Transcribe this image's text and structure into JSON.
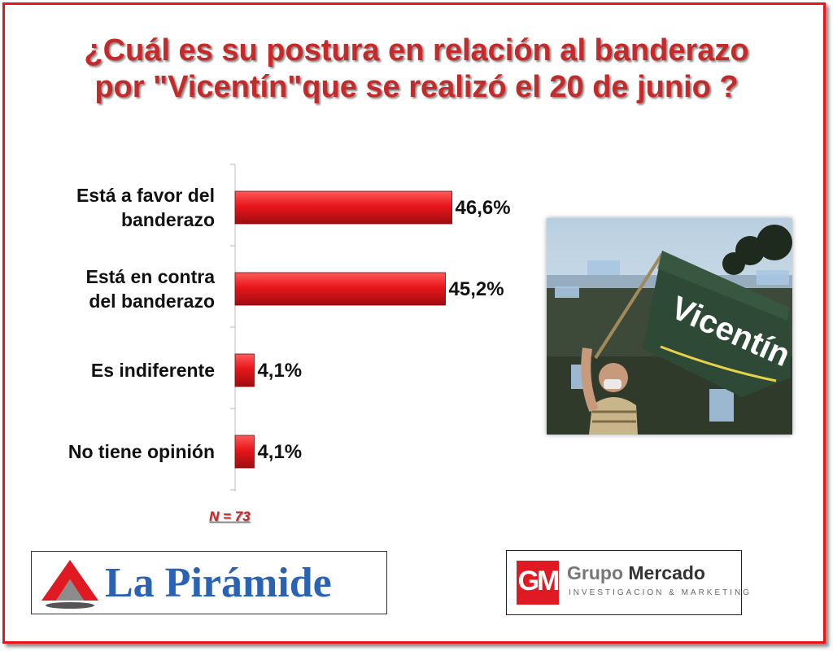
{
  "title": {
    "line1": "¿Cuál es su postura en relación al banderazo",
    "line2": "por \"Vicentín\"que se realizó el 20 de junio ?"
  },
  "chart_data": {
    "type": "bar",
    "orientation": "horizontal",
    "categories": [
      [
        "Está a favor del",
        "banderazo"
      ],
      [
        "Está en contra",
        "del banderazo"
      ],
      [
        "Es indiferente"
      ],
      [
        "No tiene opinión"
      ]
    ],
    "values": [
      46.6,
      45.2,
      4.1,
      4.1
    ],
    "value_labels": [
      "46,6%",
      "45,2%",
      "4,1%",
      "4,1%"
    ],
    "xlim": [
      0,
      50
    ],
    "grid": false,
    "bar_color": "#e8161b"
  },
  "note": "N = 73",
  "photo": {
    "flag_text": "Vicentín"
  },
  "logos": {
    "la_piramide": "La Pirámide",
    "grupo_mercado": {
      "initials": "GM",
      "name_1": "Grupo",
      "name_2": "Mercado",
      "tagline": "INVESTIGACION & MARKETING"
    }
  },
  "colors": {
    "frame": "#e8161b",
    "title": "#c42a2a",
    "piramide_blue": "#2a63b4",
    "gm_red": "#e01a22"
  }
}
